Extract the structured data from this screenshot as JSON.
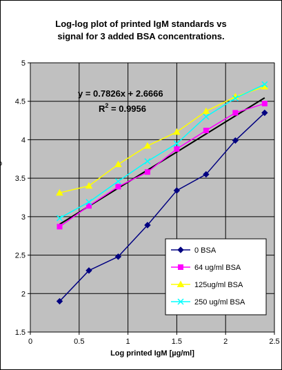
{
  "chart_data": {
    "type": "line",
    "title_lines": [
      "Log-log plot of printed IgM standards vs",
      "signal for 3 added BSA concentrations."
    ],
    "xlabel": "Log printed IgM [µg/ml]",
    "ylabel": "",
    "xlim": [
      0,
      2.5
    ],
    "ylim": [
      1.5,
      5
    ],
    "x_ticks": [
      "0",
      "0.5",
      "1",
      "1.5",
      "2",
      "2.5"
    ],
    "y_ticks": [
      "1.5",
      "2",
      "2.5",
      "3",
      "3.5",
      "4",
      "4.5",
      "5"
    ],
    "grid": true,
    "plot_background": "#c0c0c0",
    "legend_position": "bottom-right",
    "series": [
      {
        "name": "0 BSA",
        "color": "#000080",
        "marker": "diamond",
        "x": [
          0.3,
          0.6,
          0.9,
          1.2,
          1.5,
          1.8,
          2.1,
          2.4
        ],
        "y": [
          1.9,
          2.3,
          2.48,
          2.89,
          3.34,
          3.55,
          3.99,
          4.35
        ]
      },
      {
        "name": "64 ug/ml BSA",
        "color": "#ff00ff",
        "marker": "square",
        "x": [
          0.3,
          0.6,
          0.9,
          1.2,
          1.5,
          1.8,
          2.1,
          2.4
        ],
        "y": [
          2.87,
          3.14,
          3.39,
          3.58,
          3.88,
          4.12,
          4.35,
          4.47
        ]
      },
      {
        "name": "125ug/ml BSA",
        "color": "#ffff00",
        "marker": "triangle",
        "x": [
          0.3,
          0.6,
          0.9,
          1.2,
          1.5,
          1.8,
          2.1,
          2.4
        ],
        "y": [
          3.31,
          3.4,
          3.68,
          3.92,
          4.1,
          4.37,
          4.56,
          4.69
        ]
      },
      {
        "name": "250 ug/ml BSA",
        "color": "#00ffff",
        "marker": "x",
        "x": [
          0.3,
          0.6,
          0.9,
          1.2,
          1.5,
          1.8,
          2.1,
          2.4
        ],
        "y": [
          2.98,
          3.19,
          3.46,
          3.72,
          3.95,
          4.3,
          4.54,
          4.72
        ]
      }
    ],
    "trendline": {
      "slope": 0.7826,
      "intercept": 2.6666,
      "x_range": [
        0.3,
        2.4
      ],
      "color": "#000000",
      "equation": "y = 0.7826x + 2.6666",
      "r2_label": "R",
      "r2_sup": "2",
      "r2_value": " = 0.9956"
    },
    "side_label": "o"
  }
}
